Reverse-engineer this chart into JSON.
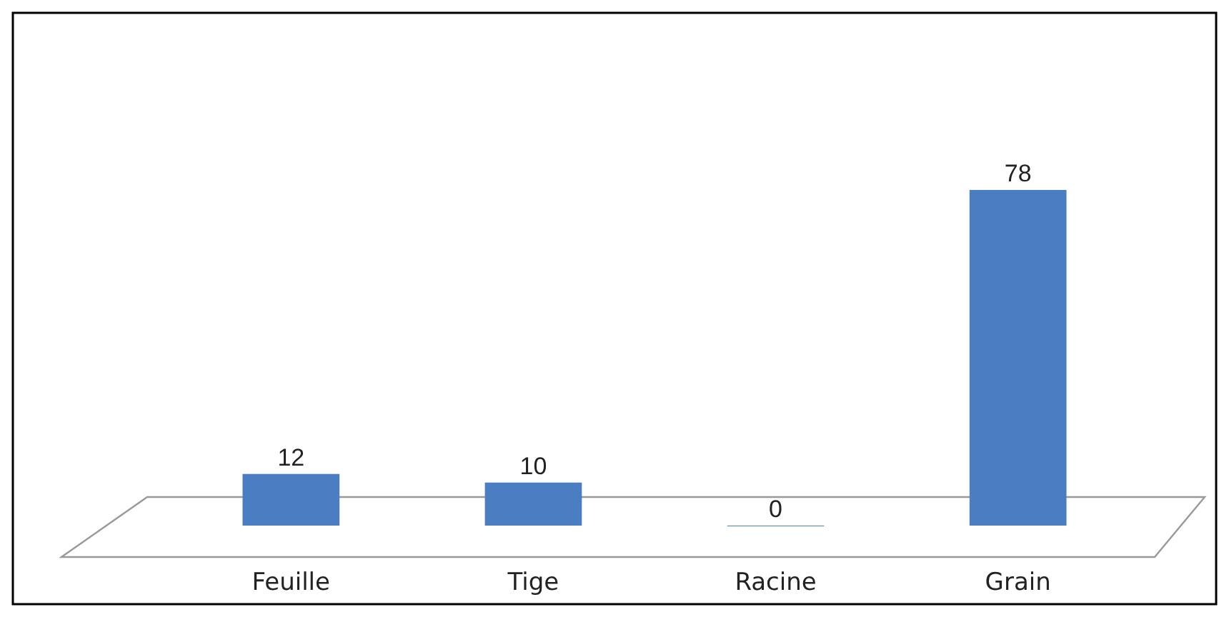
{
  "chart_data": {
    "type": "bar",
    "categories": [
      "Feuille",
      "Tige",
      "Racine",
      "Grain"
    ],
    "values": [
      12,
      10,
      0,
      78
    ],
    "color": "#4a7dc2",
    "data_labels": true
  }
}
